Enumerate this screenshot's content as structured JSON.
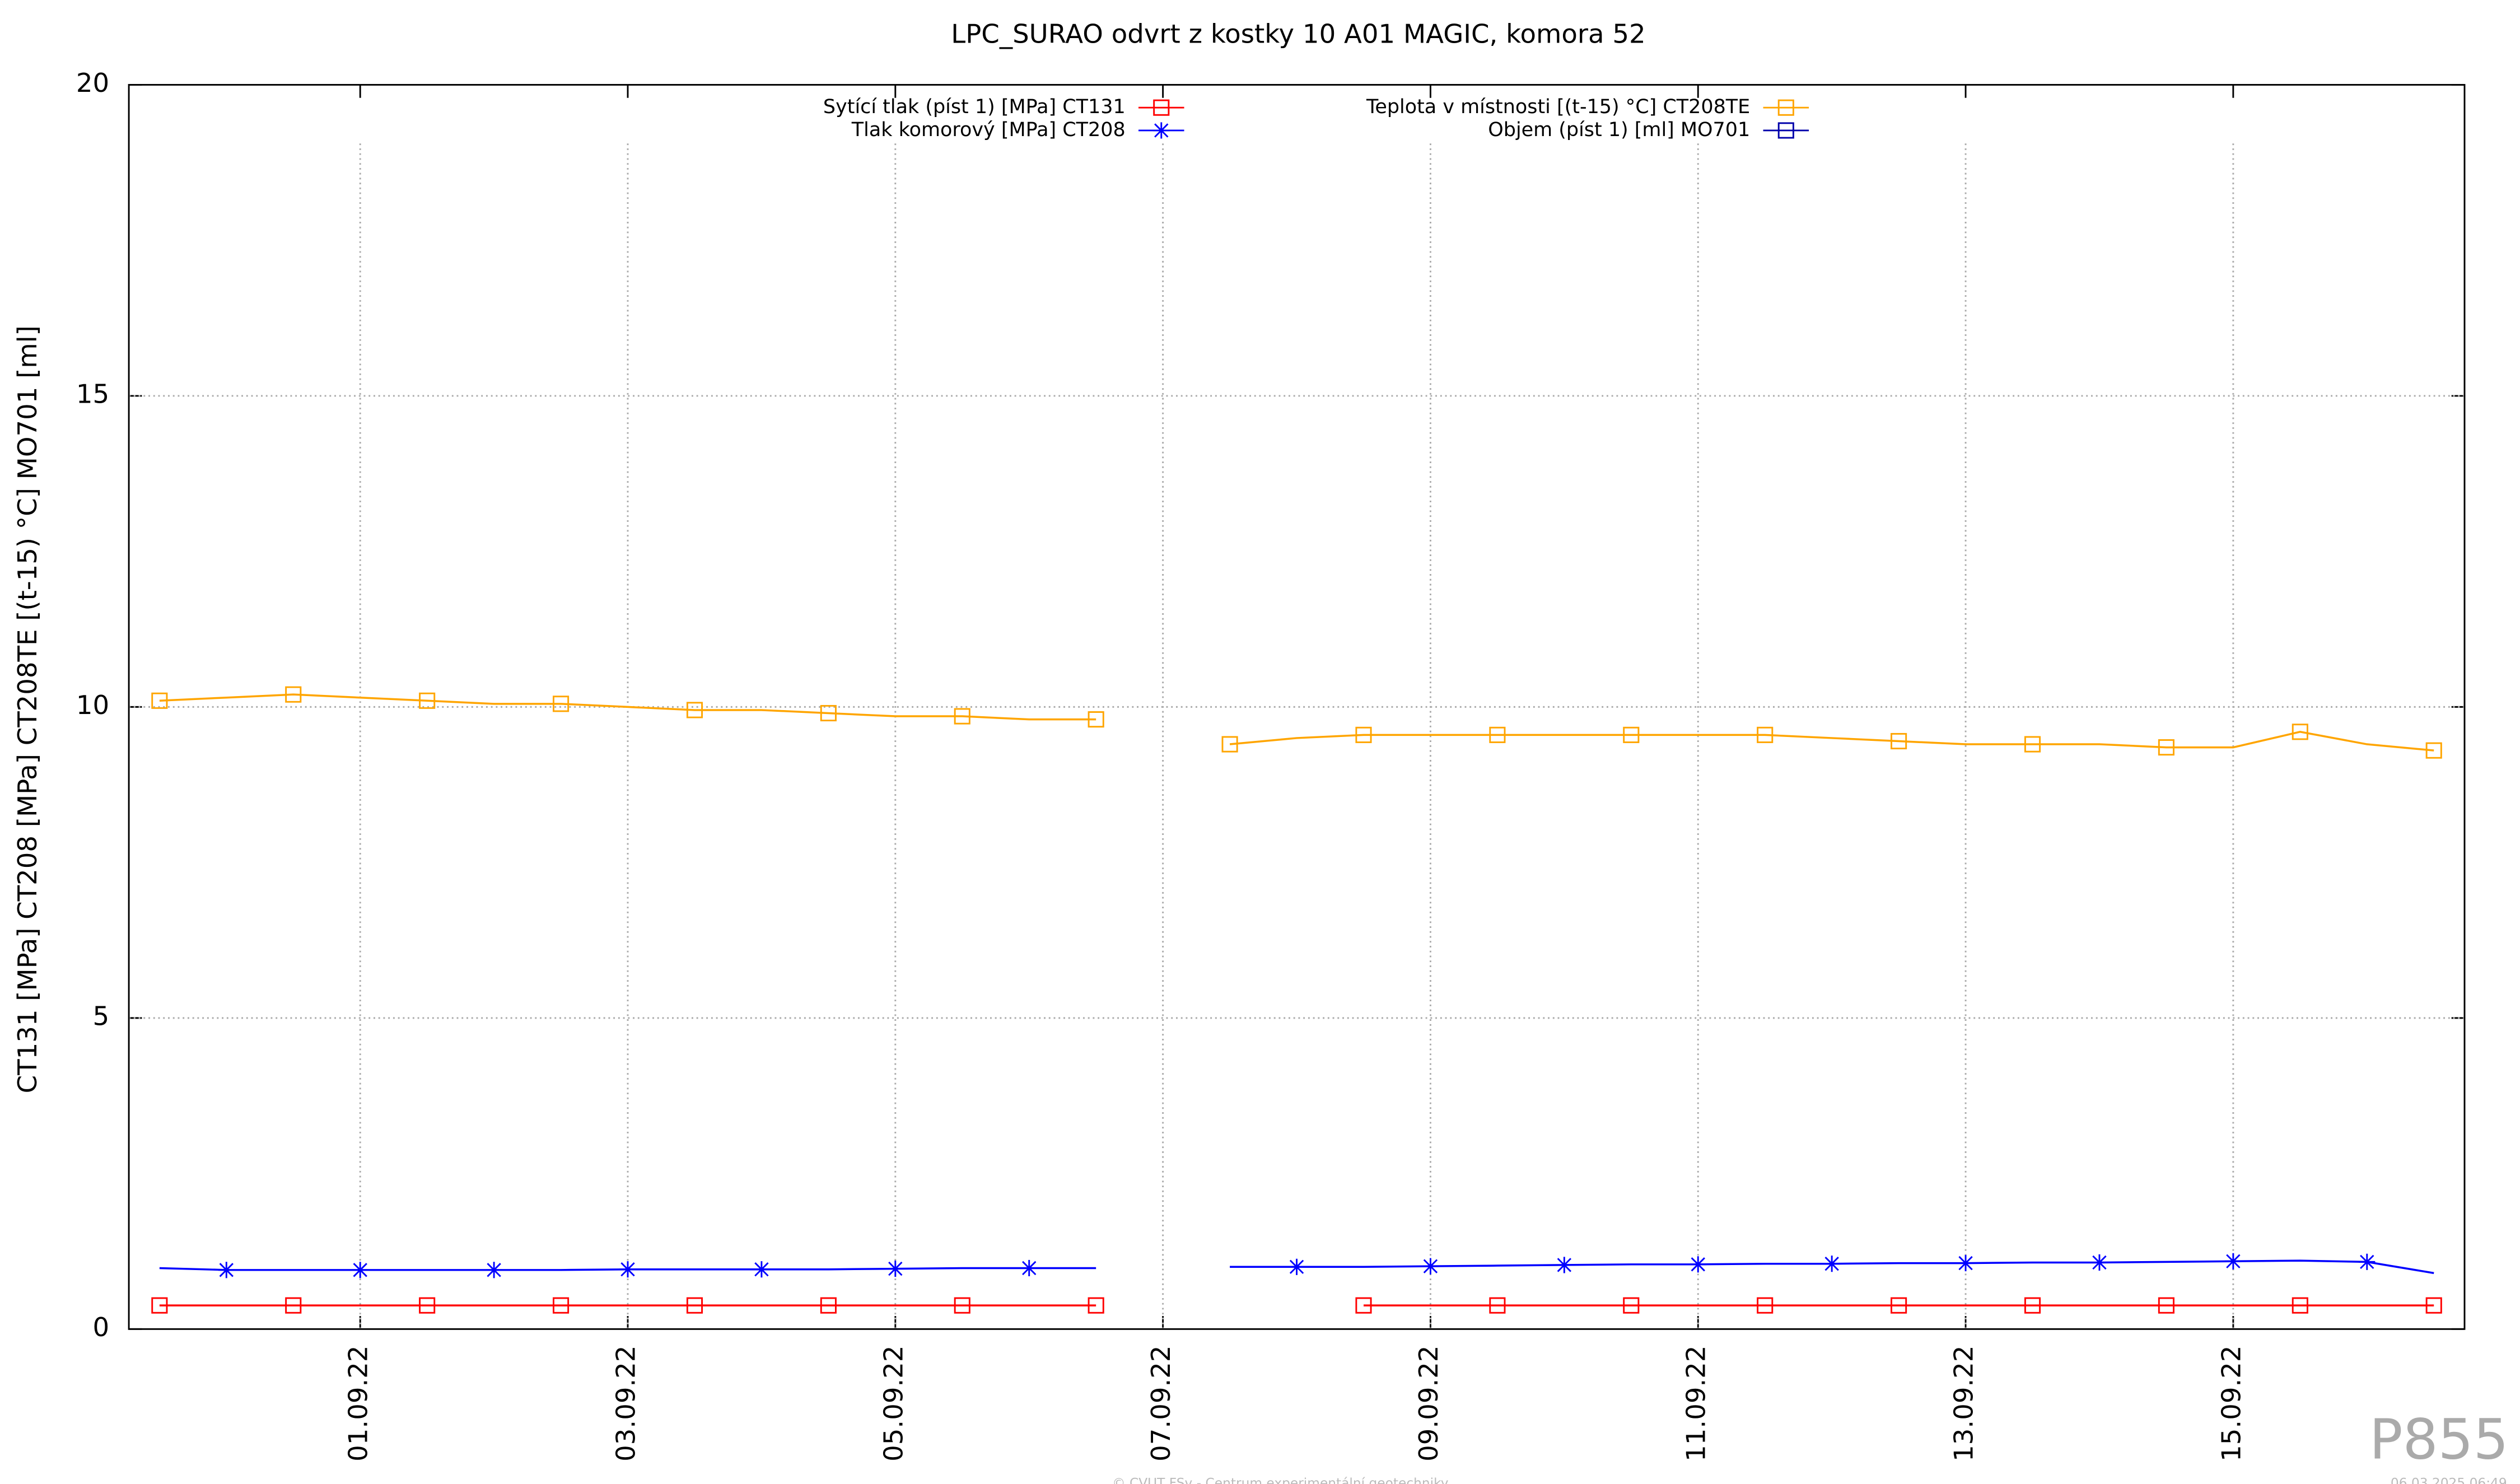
{
  "chart_data": {
    "type": "line",
    "title": "LPC_SURAO odvrt z kostky 10 A01 MAGIC, komora 52",
    "y_label": "CT131 [MPa] CT208 [MPa] CT208TE [(t-15) °C] MO701 [ml]",
    "x": [
      "2022-08-30T12:00",
      "2022-08-31T00:00",
      "2022-08-31T12:00",
      "2022-09-01T00:00",
      "2022-09-01T12:00",
      "2022-09-02T00:00",
      "2022-09-02T12:00",
      "2022-09-03T00:00",
      "2022-09-03T12:00",
      "2022-09-04T00:00",
      "2022-09-04T12:00",
      "2022-09-05T00:00",
      "2022-09-05T12:00",
      "2022-09-06T00:00",
      "2022-09-06T12:00",
      "2022-09-07T00:00",
      "2022-09-07T12:00",
      "2022-09-08T00:00",
      "2022-09-08T12:00",
      "2022-09-09T00:00",
      "2022-09-09T12:00",
      "2022-09-10T00:00",
      "2022-09-10T12:00",
      "2022-09-11T00:00",
      "2022-09-11T12:00",
      "2022-09-12T00:00",
      "2022-09-12T12:00",
      "2022-09-13T00:00",
      "2022-09-13T12:00",
      "2022-09-14T00:00",
      "2022-09-14T12:00",
      "2022-09-15T00:00",
      "2022-09-15T12:00",
      "2022-09-16T00:00",
      "2022-09-16T12:00"
    ],
    "series": [
      {
        "name": "Sytící tlak (píst 1) [MPa] CT131",
        "color": "#ff0000",
        "marker": "square",
        "values": [
          0.38,
          0.38,
          0.38,
          0.38,
          0.38,
          0.38,
          0.38,
          0.38,
          0.38,
          0.38,
          0.38,
          0.38,
          0.38,
          0.38,
          0.38,
          null,
          null,
          null,
          0.38,
          0.38,
          0.38,
          0.38,
          0.38,
          0.38,
          0.38,
          0.38,
          0.38,
          0.38,
          0.38,
          0.38,
          0.38,
          0.38,
          0.38,
          0.38,
          0.38
        ]
      },
      {
        "name": "Tlak komorový [MPa] CT208",
        "color": "#0000ff",
        "marker": "star",
        "values": [
          0.98,
          0.95,
          0.95,
          0.95,
          0.95,
          0.95,
          0.95,
          0.96,
          0.96,
          0.96,
          0.96,
          0.97,
          0.98,
          0.98,
          0.98,
          null,
          1.0,
          1.0,
          1.0,
          1.01,
          1.02,
          1.03,
          1.04,
          1.04,
          1.05,
          1.05,
          1.06,
          1.06,
          1.07,
          1.07,
          1.08,
          1.09,
          1.1,
          1.08,
          0.9
        ]
      },
      {
        "name": "Teplota v místnosti [(t-15) °C] CT208TE",
        "color": "#ffa500",
        "marker": "square",
        "values": [
          10.1,
          10.15,
          10.2,
          10.15,
          10.1,
          10.05,
          10.05,
          10.0,
          9.95,
          9.95,
          9.9,
          9.85,
          9.85,
          9.8,
          9.8,
          null,
          9.4,
          9.5,
          9.55,
          9.55,
          9.55,
          9.55,
          9.55,
          9.55,
          9.55,
          9.5,
          9.45,
          9.4,
          9.4,
          9.4,
          9.35,
          9.35,
          9.6,
          9.4,
          9.3
        ]
      },
      {
        "name": "Objem (píst 1) [ml] MO701",
        "color": "#0000aa",
        "marker": "square",
        "values": [
          null,
          null,
          null,
          null,
          null,
          null,
          null,
          null,
          null,
          null,
          null,
          null,
          null,
          null,
          null,
          null,
          null,
          null,
          null,
          null,
          null,
          null,
          null,
          null,
          null,
          null,
          null,
          null,
          null,
          null,
          null,
          null,
          null,
          null,
          null
        ]
      }
    ],
    "xlim": [
      "2022-08-30T06:30",
      "2022-09-16T17:30"
    ],
    "xticks": [
      {
        "value": "2022-09-01T00:00",
        "label": "01.09.22"
      },
      {
        "value": "2022-09-03T00:00",
        "label": "03.09.22"
      },
      {
        "value": "2022-09-05T00:00",
        "label": "05.09.22"
      },
      {
        "value": "2022-09-07T00:00",
        "label": "07.09.22"
      },
      {
        "value": "2022-09-09T00:00",
        "label": "09.09.22"
      },
      {
        "value": "2022-09-11T00:00",
        "label": "11.09.22"
      },
      {
        "value": "2022-09-13T00:00",
        "label": "13.09.22"
      },
      {
        "value": "2022-09-15T00:00",
        "label": "15.09.22"
      }
    ],
    "ylim": [
      0,
      20
    ],
    "yticks": [
      0,
      5,
      10,
      15,
      20
    ],
    "grid": true
  },
  "footer": {
    "badge": "P855",
    "credit": "© CVUT FSv - Centrum experimentální geotechniky",
    "timestamp": "06.03.2025 06:49"
  }
}
